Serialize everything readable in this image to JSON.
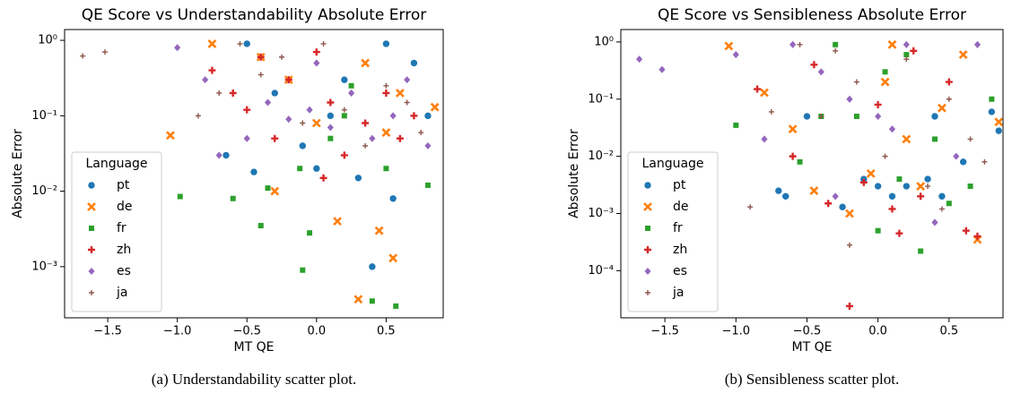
{
  "chart_data": [
    {
      "type": "scatter",
      "title": "QE Score vs Understandability Absolute Error",
      "caption": "(a) Understandability scatter plot.",
      "x_label": "MT QE",
      "y_label": "Absolute Error",
      "legend_title": "Language",
      "legend": "lower left",
      "yscale": "log",
      "xlim": [
        -1.81,
        0.91
      ],
      "ylim": [
        0.00021,
        1.39
      ],
      "xticks": [
        {
          "value": -1.5,
          "label": "−1.5"
        },
        {
          "value": -1.0,
          "label": "−1.0"
        },
        {
          "value": -0.5,
          "label": "−0.5"
        },
        {
          "value": 0,
          "label": "0.0"
        },
        0.5
      ],
      "yticks": [
        {
          "value": 1,
          "label": "10⁰"
        },
        {
          "value": 0.1,
          "label": "10⁻¹"
        },
        {
          "value": 0.01,
          "label": "10⁻²"
        },
        {
          "value": 0.001,
          "label": "10⁻³"
        }
      ],
      "series": [
        {
          "name": "pt",
          "color": "#1f77b4",
          "marker": "circle",
          "x": [
            -0.5,
            -0.45,
            -0.3,
            -0.1,
            0.0,
            0.1,
            0.2,
            0.4,
            0.5,
            0.55,
            0.7,
            0.8,
            -0.65,
            0.3
          ],
          "values": [
            0.9,
            0.018,
            0.2,
            0.04,
            0.02,
            0.1,
            0.3,
            0.001,
            0.9,
            0.008,
            0.5,
            0.1,
            0.03,
            0.015
          ]
        },
        {
          "name": "de",
          "color": "#ff7f0e",
          "marker": "x",
          "x": [
            -1.05,
            -0.75,
            -0.4,
            -0.2,
            0.0,
            0.15,
            0.3,
            0.45,
            0.5,
            0.55,
            0.6,
            0.85,
            -0.3,
            0.35
          ],
          "values": [
            0.055,
            0.9,
            0.6,
            0.3,
            0.08,
            0.004,
            0.00037,
            0.003,
            0.06,
            0.0013,
            0.2,
            0.13,
            0.01,
            0.5
          ]
        },
        {
          "name": "fr",
          "color": "#2ca02c",
          "marker": "square",
          "x": [
            -0.98,
            -0.6,
            -0.4,
            -0.35,
            -0.1,
            -0.05,
            -0.12,
            0.1,
            0.2,
            0.4,
            0.5,
            0.57,
            0.8,
            0.25
          ],
          "values": [
            0.0085,
            0.008,
            0.0035,
            0.011,
            0.0009,
            0.0028,
            0.02,
            0.05,
            0.1,
            0.00035,
            0.02,
            0.0003,
            0.012,
            0.25
          ]
        },
        {
          "name": "zh",
          "color": "#d62728",
          "marker": "plus",
          "x": [
            -0.75,
            -0.6,
            -0.5,
            -0.3,
            -0.2,
            0.0,
            0.1,
            0.2,
            0.35,
            0.5,
            0.6,
            0.7,
            -0.4,
            0.05
          ],
          "values": [
            0.4,
            0.2,
            0.12,
            0.05,
            0.3,
            0.7,
            0.15,
            0.03,
            0.08,
            0.2,
            0.05,
            0.1,
            0.6,
            0.015
          ]
        },
        {
          "name": "es",
          "color": "#9467bd",
          "marker": "diamond",
          "x": [
            -1.0,
            -0.8,
            -0.7,
            -0.5,
            -0.35,
            -0.2,
            -0.05,
            0.1,
            0.25,
            0.4,
            0.55,
            0.65,
            0.8,
            0.0
          ],
          "values": [
            0.8,
            0.3,
            0.03,
            0.05,
            0.15,
            0.09,
            0.12,
            0.07,
            0.2,
            0.05,
            0.1,
            0.3,
            0.04,
            0.5
          ]
        },
        {
          "name": "ja",
          "color": "#8c564b",
          "marker": "thinplus",
          "x": [
            -1.68,
            -1.52,
            -0.85,
            -0.7,
            -0.55,
            -0.4,
            -0.25,
            -0.1,
            0.05,
            0.2,
            0.35,
            0.5,
            0.65,
            0.75
          ],
          "values": [
            0.62,
            0.7,
            0.1,
            0.2,
            0.9,
            0.35,
            0.6,
            0.08,
            0.9,
            0.12,
            0.04,
            0.25,
            0.15,
            0.06
          ]
        }
      ]
    },
    {
      "type": "scatter",
      "title": "QE Score vs Sensibleness Absolute Error",
      "caption": "(b) Sensibleness scatter plot.",
      "x_label": "MT QE",
      "y_label": "Absolute Error",
      "legend_title": "Language",
      "legend": "lower left",
      "yscale": "log",
      "xlim": [
        -1.81,
        0.88
      ],
      "ylim": [
        1.5e-05,
        1.65
      ],
      "xticks": [
        {
          "value": -1.5,
          "label": "−1.5"
        },
        {
          "value": -1.0,
          "label": "−1.0"
        },
        {
          "value": -0.5,
          "label": "−0.5"
        },
        {
          "value": 0,
          "label": "0.0"
        },
        0.5
      ],
      "yticks": [
        {
          "value": 1,
          "label": "10⁰"
        },
        {
          "value": 0.1,
          "label": "10⁻¹"
        },
        {
          "value": 0.01,
          "label": "10⁻²"
        },
        {
          "value": 0.001,
          "label": "10⁻³"
        },
        {
          "value": 0.0001,
          "label": "10⁻⁴"
        }
      ],
      "series": [
        {
          "name": "pt",
          "color": "#1f77b4",
          "marker": "circle",
          "x": [
            -0.7,
            -0.65,
            -0.25,
            -0.1,
            0.0,
            0.1,
            0.2,
            0.35,
            0.45,
            0.6,
            0.8,
            0.85,
            0.4,
            -0.5
          ],
          "values": [
            0.0025,
            0.002,
            0.0013,
            0.004,
            0.003,
            0.002,
            0.003,
            0.004,
            0.002,
            0.008,
            0.06,
            0.028,
            0.05,
            0.05
          ]
        },
        {
          "name": "de",
          "color": "#ff7f0e",
          "marker": "x",
          "x": [
            -1.05,
            -0.8,
            -0.45,
            -0.2,
            -0.05,
            0.05,
            0.2,
            0.3,
            0.45,
            0.6,
            0.7,
            0.85,
            -0.6,
            0.1
          ],
          "values": [
            0.85,
            0.13,
            0.0025,
            0.001,
            0.005,
            0.2,
            0.02,
            0.003,
            0.07,
            0.6,
            0.00035,
            0.04,
            0.03,
            0.9
          ]
        },
        {
          "name": "fr",
          "color": "#2ca02c",
          "marker": "square",
          "x": [
            -1.0,
            -0.55,
            -0.3,
            -0.15,
            0.0,
            0.05,
            0.15,
            0.3,
            0.5,
            0.65,
            0.8,
            -0.4,
            0.2,
            0.4
          ],
          "values": [
            0.035,
            0.008,
            0.9,
            0.05,
            0.0005,
            0.3,
            0.004,
            0.00022,
            0.0015,
            0.003,
            0.1,
            0.05,
            0.6,
            0.02
          ]
        },
        {
          "name": "zh",
          "color": "#d62728",
          "marker": "plus",
          "x": [
            -0.85,
            -0.6,
            -0.35,
            -0.2,
            -0.1,
            0.1,
            0.15,
            0.3,
            0.5,
            0.62,
            0.7,
            -0.45,
            0.0,
            0.25
          ],
          "values": [
            0.15,
            0.01,
            0.0015,
            2.4e-05,
            0.0035,
            0.0012,
            0.00045,
            0.002,
            0.2,
            0.0005,
            0.0004,
            0.4,
            0.08,
            0.7
          ]
        },
        {
          "name": "es",
          "color": "#9467bd",
          "marker": "diamond",
          "x": [
            -1.68,
            -1.52,
            -1.0,
            -0.8,
            -0.6,
            -0.4,
            -0.2,
            0.0,
            0.2,
            0.4,
            0.55,
            0.7,
            -0.3,
            0.1
          ],
          "values": [
            0.5,
            0.33,
            0.6,
            0.02,
            0.9,
            0.3,
            0.1,
            0.05,
            0.9,
            0.0007,
            0.01,
            0.9,
            0.002,
            0.03
          ]
        },
        {
          "name": "ja",
          "color": "#8c564b",
          "marker": "thinplus",
          "x": [
            -0.9,
            -0.75,
            -0.55,
            -0.4,
            -0.2,
            -0.15,
            0.05,
            0.2,
            0.35,
            0.5,
            0.65,
            0.75,
            -0.3,
            0.45
          ],
          "values": [
            0.0013,
            0.06,
            0.9,
            0.05,
            0.00028,
            0.2,
            0.01,
            0.5,
            0.003,
            0.1,
            0.02,
            0.008,
            0.7,
            0.0012
          ]
        }
      ]
    }
  ]
}
